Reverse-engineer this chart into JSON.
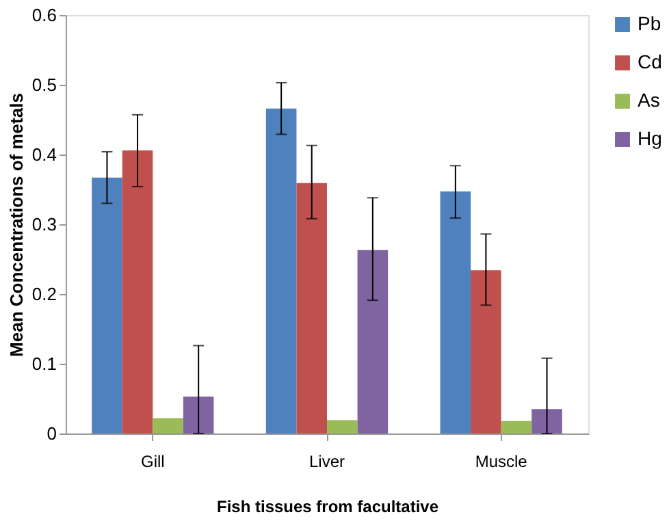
{
  "chart_data": {
    "type": "bar",
    "xlabel": "Fish tissues from facultative",
    "ylabel": "Mean Concentrations of metals",
    "categories": [
      "Gill",
      "Liver",
      "Muscle"
    ],
    "series": [
      {
        "name": "Pb",
        "color": "#4f81bd",
        "values": [
          0.367,
          0.466,
          0.347
        ],
        "errors": [
          [
            0.33,
            0.404
          ],
          [
            0.429,
            0.503
          ],
          [
            0.309,
            0.384
          ]
        ]
      },
      {
        "name": "Cd",
        "color": "#c0504d",
        "values": [
          0.406,
          0.359,
          0.234
        ],
        "errors": [
          [
            0.354,
            0.457
          ],
          [
            0.308,
            0.413
          ],
          [
            0.184,
            0.286
          ]
        ]
      },
      {
        "name": "As",
        "color": "#9bbb59",
        "values": [
          0.022,
          0.019,
          0.018
        ]
      },
      {
        "name": "Hg",
        "color": "#8064a2",
        "values": [
          0.053,
          0.263,
          0.035
        ],
        "errors": [
          [
            0,
            0.126
          ],
          [
            0.191,
            0.338
          ],
          [
            0,
            0.108
          ]
        ]
      }
    ],
    "ylim": [
      0,
      0.6
    ],
    "yticks": [
      0,
      0.1,
      0.2,
      0.3,
      0.4,
      0.5,
      0.6
    ],
    "grid": false,
    "legend": "right"
  }
}
